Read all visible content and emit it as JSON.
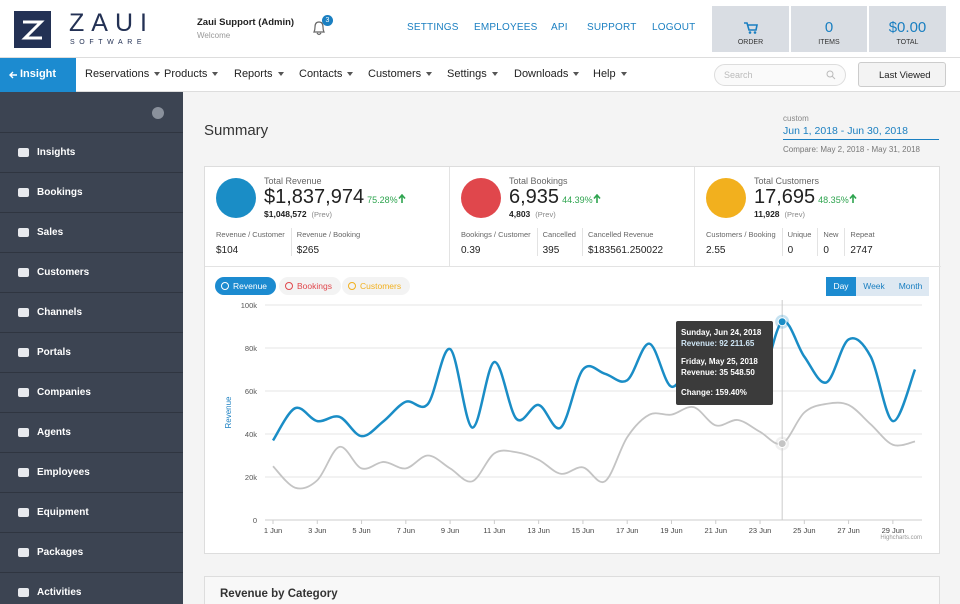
{
  "header": {
    "logo": "ZAUI",
    "logo_sub": "SOFTWARE",
    "user": "Zaui Support (Admin)",
    "welcome": "Welcome",
    "notifications": 3,
    "links": [
      "SETTINGS",
      "EMPLOYEES",
      "API",
      "SUPPORT",
      "LOGOUT"
    ],
    "cart": {
      "order": "ORDER",
      "items": 0,
      "items_label": "ITEMS",
      "total": "$0.00",
      "total_label": "TOTAL"
    }
  },
  "nav": {
    "active": "Insight",
    "menus": [
      "Reservations",
      "Products",
      "Reports",
      "Contacts",
      "Customers",
      "Settings",
      "Downloads",
      "Help"
    ],
    "search": "Search",
    "last_viewed": "Last Viewed"
  },
  "sidebar": [
    "Insights",
    "Bookings",
    "Sales",
    "Customers",
    "Channels",
    "Portals",
    "Companies",
    "Agents",
    "Employees",
    "Equipment",
    "Packages",
    "Activities"
  ],
  "summary": {
    "title": "Summary",
    "range_label": "custom",
    "range": "Jun 1, 2018 - Jun 30, 2018",
    "compare": "Compare: May 2, 2018 - May 31, 2018"
  },
  "kpis": [
    {
      "label": "Total Revenue",
      "value": "$1,837,974",
      "change": "75.28%",
      "prev": "$1,048,572",
      "prev_label": "(Prev)",
      "color": "#1a8dc6",
      "metrics": [
        {
          "label": "Revenue / Customer",
          "value": "$104"
        },
        {
          "label": "Revenue / Booking",
          "value": "$265"
        }
      ]
    },
    {
      "label": "Total Bookings",
      "value": "6,935",
      "change": "44.39%",
      "prev": "4,803",
      "prev_label": "(Prev)",
      "color": "#e0474c",
      "metrics": [
        {
          "label": "Bookings / Customer",
          "value": "0.39"
        },
        {
          "label": "Cancelled",
          "value": "395"
        },
        {
          "label": "Cancelled Revenue",
          "value": "$183561.250022"
        }
      ]
    },
    {
      "label": "Total Customers",
      "value": "17,695",
      "change": "48.35%",
      "prev": "11,928",
      "prev_label": "(Prev)",
      "color": "#f2b01e",
      "metrics": [
        {
          "label": "Customers / Booking",
          "value": "2.55"
        },
        {
          "label": "Unique",
          "value": "0"
        },
        {
          "label": "New",
          "value": "0"
        },
        {
          "label": "Repeat",
          "value": "2747"
        }
      ]
    }
  ],
  "chart_data": {
    "type": "line",
    "toggles": [
      "Revenue",
      "Bookings",
      "Customers"
    ],
    "periods": [
      "Day",
      "Week",
      "Month"
    ],
    "y_label": "Revenue",
    "categories": [
      "1 Jun",
      null,
      "3 Jun",
      null,
      "5 Jun",
      null,
      "7 Jun",
      null,
      "9 Jun",
      null,
      "11 Jun",
      null,
      "13 Jun",
      null,
      "15 Jun",
      null,
      "17 Jun",
      null,
      "19 Jun",
      null,
      "21 Jun",
      null,
      "23 Jun",
      null,
      "25 Jun",
      null,
      "27 Jun",
      null,
      "29 Jun",
      null
    ],
    "series": [
      {
        "color": "#1a8dc6",
        "values": [
          37000,
          52000,
          46000,
          48000,
          39000,
          46000,
          55000,
          54000,
          79500,
          43000,
          73500,
          47000,
          53500,
          43000,
          70000,
          68000,
          65000,
          82000,
          62000,
          76000,
          81000,
          66000,
          63000,
          92211.65,
          76000,
          64000,
          84000,
          76000,
          46000,
          70000
        ]
      },
      {
        "color": "#c4c4c4",
        "values": [
          25000,
          15000,
          18500,
          34000,
          24000,
          27000,
          24000,
          30000,
          24000,
          18000,
          31000,
          31500,
          28000,
          21500,
          24500,
          18000,
          38500,
          49000,
          49000,
          52500,
          44000,
          46500,
          41000,
          35548.5,
          50000,
          54000,
          53500,
          44500,
          35000,
          36500
        ]
      }
    ],
    "ylim": [
      0,
      100000
    ],
    "yticks": [
      0,
      {
        "value": 20000,
        "label": "20k"
      },
      {
        "value": 40000,
        "label": "40k"
      },
      {
        "value": 60000,
        "label": "60k"
      },
      {
        "value": 80000,
        "label": "80k"
      },
      {
        "value": 100000,
        "label": "100k"
      }
    ],
    "grid": true,
    "tooltip": {
      "date1": "Sunday, Jun 24, 2018",
      "line1": "Revenue: 92 211.65",
      "date2": "Friday, May 25, 2018",
      "line2": "Revenue: 35 548.50",
      "change": "Change: 159.40%"
    },
    "credit": "Highcharts.com"
  },
  "section": {
    "title": "Revenue by Category"
  }
}
